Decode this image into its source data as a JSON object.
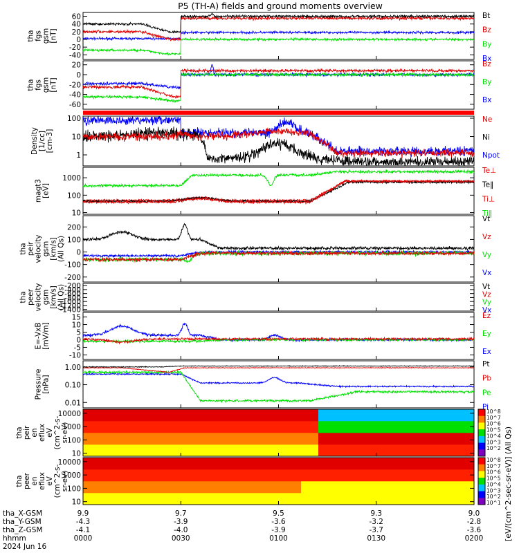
{
  "title": "P5 (TH-A) fields and ground moments overview",
  "colors": {
    "black": "#000000",
    "red": "#e00000",
    "green": "#00e000",
    "blue": "#0000ff",
    "bar": "#ff0000"
  },
  "chart_data": [
    {
      "type": "line",
      "id": "fgs_mag",
      "ylabel": [
        "tha",
        "fgs",
        "gsm",
        "[nT]"
      ],
      "yticks": [
        -40,
        -20,
        0,
        20,
        40,
        60
      ],
      "ylim": [
        -52,
        70
      ],
      "series": [
        {
          "name": "Bt",
          "color": "black"
        },
        {
          "name": "Bz",
          "color": "red"
        },
        {
          "name": "By",
          "color": "green"
        },
        {
          "name": "Bx",
          "color": "blue"
        }
      ]
    },
    {
      "type": "line",
      "id": "fgs_comp",
      "ylabel": [
        "tha",
        "fgs",
        "gsm",
        "[nT]"
      ],
      "yticks": [
        -60,
        -40,
        -20,
        0,
        20
      ],
      "ylim": [
        -70,
        28
      ],
      "series": [
        {
          "name": "Bz",
          "color": "red"
        },
        {
          "name": "By",
          "color": "green"
        },
        {
          "name": "Bx",
          "color": "blue"
        }
      ]
    },
    {
      "type": "line",
      "id": "density",
      "log": true,
      "ylabel": [
        "Density",
        "[1/cc]",
        "[cm-3]"
      ],
      "yticks": [
        "1",
        "10",
        "100"
      ],
      "ylim": [
        0.25,
        130
      ],
      "series": [
        {
          "name": "Ne",
          "color": "red"
        },
        {
          "name": "Ni",
          "color": "black"
        },
        {
          "name": "Npot",
          "color": "blue"
        }
      ]
    },
    {
      "type": "line",
      "id": "temperature",
      "log": true,
      "ylabel": [
        "magt3",
        "[eV]"
      ],
      "yticks": [
        "10",
        "100",
        "1000"
      ],
      "ylim": [
        8,
        4000
      ],
      "series": [
        {
          "name": "Te⊥",
          "color": "red"
        },
        {
          "name": "Te‖",
          "color": "black"
        },
        {
          "name": "Ti⊥",
          "color": "red"
        },
        {
          "name": "Ti‖",
          "color": "green"
        }
      ]
    },
    {
      "type": "line",
      "id": "peir_velocity",
      "ylabel": [
        "tha",
        "peir",
        "velocity",
        "gsm",
        "[km/s]",
        "(All Qs)"
      ],
      "yticks": [
        -200,
        -100,
        0,
        100,
        200
      ],
      "ylim": [
        -240,
        290
      ],
      "series": [
        {
          "name": "Vt",
          "color": "black"
        },
        {
          "name": "Vz",
          "color": "red"
        },
        {
          "name": "Vy",
          "color": "green"
        },
        {
          "name": "Vx",
          "color": "blue"
        }
      ]
    },
    {
      "type": "line",
      "id": "peer_velocity",
      "ylabel": [
        "tha",
        "peer",
        "velocity",
        "gsm",
        "[km/s]",
        "(All Qs)"
      ],
      "yticks": [
        -1400,
        -1200,
        -1000,
        -800,
        -600,
        -400,
        -200
      ],
      "ylim": [
        -1480,
        -90
      ],
      "series": [
        {
          "name": "Vt",
          "color": "black"
        },
        {
          "name": "Vz",
          "color": "red"
        },
        {
          "name": "Vy",
          "color": "green"
        },
        {
          "name": "Vx",
          "color": "blue"
        }
      ]
    },
    {
      "type": "line",
      "id": "efield",
      "ylabel": [
        "E=-VxB",
        "[mV/m]"
      ],
      "yticks": [
        -10,
        -5,
        0,
        5,
        10,
        15
      ],
      "ylim": [
        -13,
        18
      ],
      "series": [
        {
          "name": "Ez",
          "color": "red"
        },
        {
          "name": "Ey",
          "color": "green"
        },
        {
          "name": "Ex",
          "color": "blue"
        }
      ]
    },
    {
      "type": "line",
      "id": "pressure",
      "log": true,
      "ylabel": [
        "Pressure",
        "[nPa]"
      ],
      "yticks": [
        "0.01",
        "0.10",
        "1.00"
      ],
      "ylim": [
        0.005,
        2.2
      ],
      "series": [
        {
          "name": "Pt",
          "color": "black"
        },
        {
          "name": "Pb",
          "color": "red"
        },
        {
          "name": "Pe",
          "color": "green"
        },
        {
          "name": "Pi",
          "color": "blue"
        }
      ]
    },
    {
      "type": "heatmap",
      "id": "peir_spectrogram",
      "log": true,
      "ylabel": [
        "tha",
        "peir",
        "en",
        "eflux",
        "eV",
        "(cm^2-s-",
        "sr-eV)"
      ],
      "yticks": [
        "10",
        "100",
        "1000",
        "10000"
      ],
      "ylim": [
        6,
        20000
      ]
    },
    {
      "type": "heatmap",
      "id": "peer_spectrogram",
      "log": true,
      "ylabel": [
        "tha",
        "peer",
        "en",
        "eflux",
        "eV",
        "(cm^2-s-",
        "sr-eV)"
      ],
      "yticks": [
        "10",
        "100",
        "1000",
        "10000"
      ],
      "ylim": [
        6,
        20000
      ]
    }
  ],
  "colorbar": {
    "label": "[eV/(cm^2-sec-sr-eV)] (All Qs)",
    "ticks": [
      "10^8",
      "10^7",
      "10^6",
      "10^5",
      "10^4",
      "10^3",
      "10^2",
      "10^1"
    ]
  },
  "xaxis": {
    "rows": [
      {
        "label": "tha_X-GSM",
        "values": [
          "9.9",
          "9.7",
          "9.5",
          "9.3",
          "9.0"
        ]
      },
      {
        "label": "tha_Y-GSM",
        "values": [
          "-4.3",
          "-3.9",
          "-3.6",
          "-3.2",
          "-2.8"
        ]
      },
      {
        "label": "tha_Z-GSM",
        "values": [
          "-4.1",
          "-4.0",
          "-3.9",
          "-3.7",
          "-3.6"
        ]
      },
      {
        "label": "hhmm",
        "values": [
          "0000",
          "0030",
          "0100",
          "0130",
          "0200"
        ]
      }
    ],
    "date": "2024 Jun 16"
  }
}
